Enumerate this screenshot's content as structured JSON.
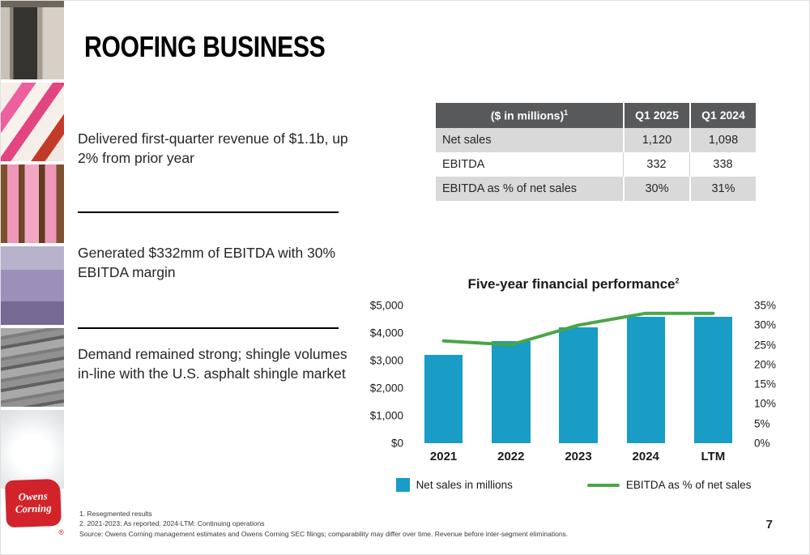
{
  "title": "ROOFING BUSINESS",
  "bullets": [
    "Delivered first-quarter revenue of $1.1b, up 2% from prior year",
    "Generated $332mm of EBITDA with 30% EBITDA margin",
    "Demand remained strong; shingle volumes in-line with the U.S. asphalt shingle market"
  ],
  "table": {
    "header": {
      "label": "($ in millions)",
      "note_ref": "1",
      "col1": "Q1 2025",
      "col2": "Q1 2024"
    },
    "rows": [
      {
        "label": "Net sales",
        "q1_2025": "1,120",
        "q1_2024": "1,098"
      },
      {
        "label": "EBITDA",
        "q1_2025": "332",
        "q1_2024": "338"
      },
      {
        "label": "EBITDA as % of net sales",
        "q1_2025": "30%",
        "q1_2024": "31%"
      }
    ]
  },
  "chart_data": {
    "type": "bar+line",
    "title": "Five-year financial performance",
    "note_ref": "2",
    "categories": [
      "2021",
      "2022",
      "2023",
      "2024",
      "LTM"
    ],
    "series": [
      {
        "name": "Net sales in millions",
        "type": "bar",
        "axis": "left",
        "values": [
          3200,
          3700,
          4200,
          4600,
          4600
        ]
      },
      {
        "name": "EBITDA as % of net sales",
        "type": "line",
        "axis": "right",
        "values": [
          26,
          25,
          30,
          33,
          33
        ]
      }
    ],
    "left_axis": {
      "min": 0,
      "max": 5000,
      "ticks": [
        "$5,000",
        "$4,000",
        "$3,000",
        "$2,000",
        "$1,000",
        "$0"
      ]
    },
    "right_axis": {
      "min": 0,
      "max": 35,
      "ticks": [
        "35%",
        "30%",
        "25%",
        "20%",
        "15%",
        "10%",
        "5%",
        "0%"
      ]
    },
    "grid": false,
    "legend_position": "bottom"
  },
  "footnotes": [
    "1. Resegmented results",
    "2. 2021-2023: As reported; 2024-LTM: Continuing operations",
    "Source: Owens Corning management estimates and Owens Corning SEC filings; comparability may differ over time. Revenue before inter-segment eliminations."
  ],
  "logo": {
    "line1": "Owens",
    "line2": "Corning",
    "reg": "®"
  },
  "page_number": "7",
  "colors": {
    "bar": "#199cc5",
    "line": "#4aa546",
    "table_header_bg": "#58595b",
    "table_row_alt_bg": "#d9d9d9",
    "logo_red": "#d2232a"
  }
}
